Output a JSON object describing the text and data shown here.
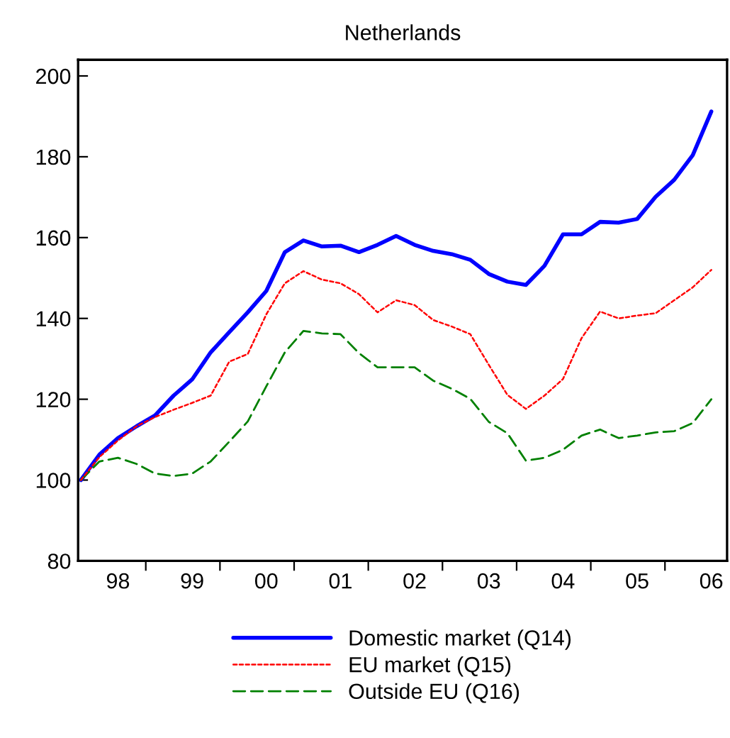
{
  "chart_data": {
    "type": "line",
    "title": "Netherlands",
    "categories": [
      null,
      null,
      "98",
      null,
      null,
      null,
      "99",
      null,
      null,
      null,
      "00",
      null,
      null,
      null,
      "01",
      null,
      null,
      null,
      "02",
      null,
      null,
      null,
      "03",
      null,
      null,
      null,
      "04",
      null,
      null,
      null,
      "05",
      null,
      null,
      null,
      "06"
    ],
    "series": [
      {
        "name": "Domestic market (Q14)",
        "color": "#0000ff",
        "line_style": "solid",
        "values": [
          100,
          106.3,
          110.4,
          113.3,
          116,
          120.9,
          124.9,
          131.6,
          136.6,
          141.5,
          146.8,
          156.4,
          159.3,
          157.8,
          158,
          156.4,
          158.2,
          160.4,
          158.2,
          156.7,
          155.9,
          154.5,
          151,
          149.1,
          148.3,
          153,
          160.8,
          160.8,
          163.9,
          163.7,
          164.6,
          170.1,
          174.3,
          180.4,
          191.2
        ]
      },
      {
        "name": "EU market (Q15)",
        "color": "#ff0000",
        "line_style": "dotted",
        "values": [
          100,
          105.7,
          109.8,
          113.3,
          115.6,
          117.4,
          119.1,
          120.9,
          129.3,
          131.2,
          141,
          148.7,
          151.7,
          149.6,
          148.7,
          146,
          141.5,
          144.5,
          143.3,
          139.6,
          138,
          136.1,
          128.5,
          121.1,
          117.6,
          120.9,
          125,
          135.1,
          141.7,
          140,
          140.7,
          141.3,
          144.5,
          147.7,
          152
        ]
      },
      {
        "name": "Outside EU (Q16)",
        "color": "#008000",
        "line_style": "dashed",
        "values": [
          100,
          104.6,
          105.5,
          104,
          101.6,
          101,
          101.6,
          104.6,
          109.5,
          114.5,
          123.2,
          131.6,
          136.9,
          136.3,
          136.1,
          131.4,
          127.9,
          127.9,
          127.9,
          124.6,
          122.6,
          120.1,
          114.4,
          111.6,
          104.8,
          105.5,
          107.5,
          111,
          112.5,
          110.4,
          111,
          111.8,
          112.1,
          114.1,
          120
        ]
      }
    ],
    "ylim": [
      80,
      204
    ],
    "yticks": [
      80,
      100,
      120,
      140,
      160,
      180,
      200
    ],
    "grid": false,
    "legend": "bottom",
    "marker": "none"
  }
}
